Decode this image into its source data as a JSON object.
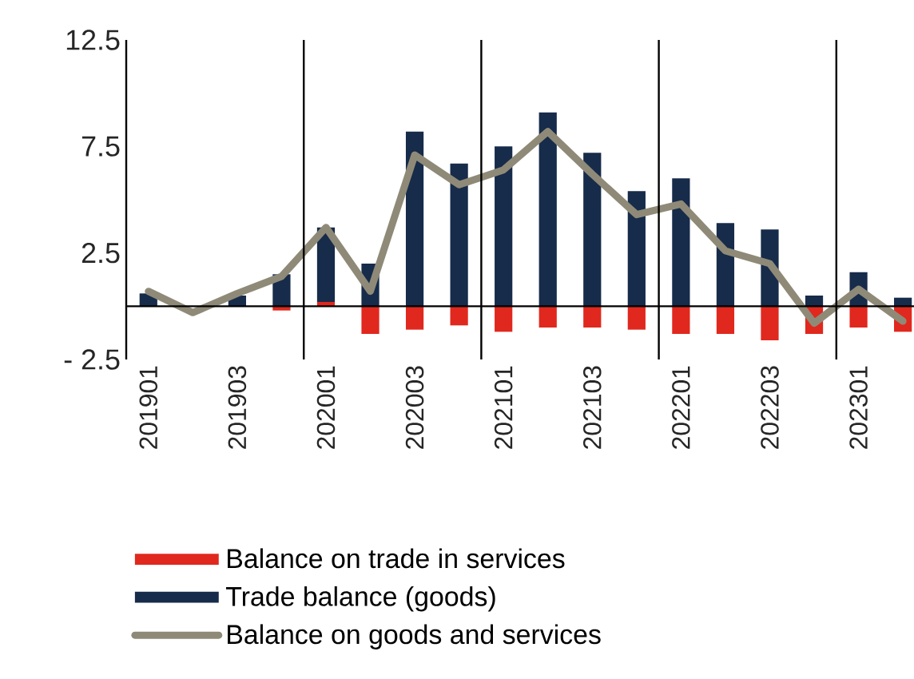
{
  "chart_data": {
    "type": "bar",
    "stacked": true,
    "categories": [
      "201901",
      null,
      "201903",
      null,
      "202001",
      null,
      "202003",
      null,
      "202101",
      null,
      "202103",
      null,
      "202201",
      null,
      "202203",
      null,
      "202301",
      null
    ],
    "series": [
      {
        "name": "Balance on trade in services",
        "color": "#e0281e",
        "values": [
          0,
          null,
          0,
          -0.2,
          0.2,
          -1.3,
          -1.1,
          -0.9,
          -1.2,
          -1.0,
          -1.0,
          -1.1,
          -1.3,
          -1.3,
          -1.6,
          -1.3,
          -1.0,
          -1.2
        ]
      },
      {
        "name": "Trade balance (goods)",
        "color": "#172b4a",
        "values": [
          0.6,
          0,
          0.5,
          1.5,
          3.5,
          2.0,
          8.2,
          6.7,
          7.5,
          9.1,
          7.2,
          5.4,
          6.0,
          3.9,
          3.6,
          0.5,
          1.6,
          0.4
        ]
      },
      {
        "name": "Balance on goods and services",
        "type": "line",
        "color": "#8f8a78",
        "values": [
          0.7,
          -0.3,
          0.6,
          1.4,
          3.7,
          0.7,
          7.1,
          5.7,
          6.4,
          8.2,
          6.2,
          4.3,
          4.8,
          2.6,
          2.0,
          -0.8,
          0.8,
          -0.7
        ]
      }
    ],
    "ylim": [
      -2.5,
      12.5
    ],
    "yticks": [
      {
        "value": -2.5,
        "label": "- 2.5"
      },
      2.5,
      7.5,
      12.5
    ],
    "grid": "x",
    "legend": "bottom"
  }
}
